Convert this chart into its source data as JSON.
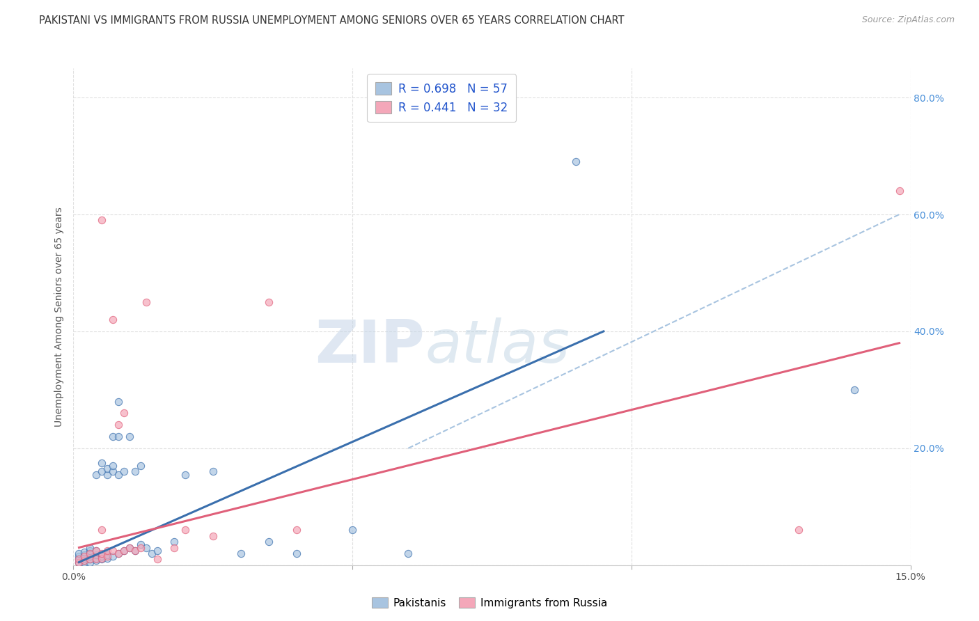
{
  "title": "PAKISTANI VS IMMIGRANTS FROM RUSSIA UNEMPLOYMENT AMONG SENIORS OVER 65 YEARS CORRELATION CHART",
  "source": "Source: ZipAtlas.com",
  "ylabel": "Unemployment Among Seniors over 65 years",
  "xlim": [
    0.0,
    0.15
  ],
  "ylim": [
    0.0,
    0.85
  ],
  "xtick_positions": [
    0.0,
    0.05,
    0.1,
    0.15
  ],
  "xticklabels": [
    "0.0%",
    "",
    "",
    "15.0%"
  ],
  "ytick_positions": [
    0.0,
    0.2,
    0.4,
    0.6,
    0.8
  ],
  "yticklabels_right": [
    "",
    "20.0%",
    "40.0%",
    "60.0%",
    "80.0%"
  ],
  "pakistani_color": "#a8c4e0",
  "russia_color": "#f4a7b9",
  "pakistani_line_color": "#3a6fad",
  "russia_line_color": "#e0607a",
  "dashed_line_color": "#a8c4e0",
  "R_pakistani": 0.698,
  "N_pakistani": 57,
  "R_russia": 0.441,
  "N_russia": 32,
  "watermark_zip": "ZIP",
  "watermark_atlas": "atlas",
  "background_color": "#ffffff",
  "grid_color": "#dddddd",
  "pakistani_scatter": [
    [
      0.001,
      0.005
    ],
    [
      0.001,
      0.01
    ],
    [
      0.001,
      0.015
    ],
    [
      0.001,
      0.02
    ],
    [
      0.002,
      0.005
    ],
    [
      0.002,
      0.008
    ],
    [
      0.002,
      0.012
    ],
    [
      0.002,
      0.018
    ],
    [
      0.002,
      0.022
    ],
    [
      0.003,
      0.005
    ],
    [
      0.003,
      0.01
    ],
    [
      0.003,
      0.015
    ],
    [
      0.003,
      0.02
    ],
    [
      0.003,
      0.025
    ],
    [
      0.003,
      0.03
    ],
    [
      0.004,
      0.008
    ],
    [
      0.004,
      0.012
    ],
    [
      0.004,
      0.018
    ],
    [
      0.004,
      0.025
    ],
    [
      0.004,
      0.155
    ],
    [
      0.005,
      0.01
    ],
    [
      0.005,
      0.015
    ],
    [
      0.005,
      0.16
    ],
    [
      0.005,
      0.175
    ],
    [
      0.006,
      0.012
    ],
    [
      0.006,
      0.018
    ],
    [
      0.006,
      0.155
    ],
    [
      0.006,
      0.165
    ],
    [
      0.007,
      0.015
    ],
    [
      0.007,
      0.16
    ],
    [
      0.007,
      0.17
    ],
    [
      0.007,
      0.22
    ],
    [
      0.008,
      0.02
    ],
    [
      0.008,
      0.155
    ],
    [
      0.008,
      0.22
    ],
    [
      0.008,
      0.28
    ],
    [
      0.009,
      0.025
    ],
    [
      0.009,
      0.16
    ],
    [
      0.01,
      0.03
    ],
    [
      0.01,
      0.22
    ],
    [
      0.011,
      0.025
    ],
    [
      0.011,
      0.16
    ],
    [
      0.012,
      0.035
    ],
    [
      0.012,
      0.17
    ],
    [
      0.013,
      0.03
    ],
    [
      0.014,
      0.02
    ],
    [
      0.015,
      0.025
    ],
    [
      0.018,
      0.04
    ],
    [
      0.02,
      0.155
    ],
    [
      0.025,
      0.16
    ],
    [
      0.03,
      0.02
    ],
    [
      0.035,
      0.04
    ],
    [
      0.04,
      0.02
    ],
    [
      0.05,
      0.06
    ],
    [
      0.06,
      0.02
    ],
    [
      0.09,
      0.69
    ],
    [
      0.14,
      0.3
    ]
  ],
  "russia_scatter": [
    [
      0.001,
      0.005
    ],
    [
      0.001,
      0.01
    ],
    [
      0.002,
      0.008
    ],
    [
      0.002,
      0.015
    ],
    [
      0.003,
      0.01
    ],
    [
      0.003,
      0.02
    ],
    [
      0.004,
      0.01
    ],
    [
      0.004,
      0.025
    ],
    [
      0.005,
      0.012
    ],
    [
      0.005,
      0.02
    ],
    [
      0.005,
      0.06
    ],
    [
      0.005,
      0.59
    ],
    [
      0.006,
      0.015
    ],
    [
      0.006,
      0.025
    ],
    [
      0.007,
      0.025
    ],
    [
      0.007,
      0.42
    ],
    [
      0.008,
      0.02
    ],
    [
      0.008,
      0.24
    ],
    [
      0.009,
      0.025
    ],
    [
      0.009,
      0.26
    ],
    [
      0.01,
      0.03
    ],
    [
      0.011,
      0.025
    ],
    [
      0.012,
      0.03
    ],
    [
      0.013,
      0.45
    ],
    [
      0.015,
      0.01
    ],
    [
      0.018,
      0.03
    ],
    [
      0.02,
      0.06
    ],
    [
      0.025,
      0.05
    ],
    [
      0.035,
      0.45
    ],
    [
      0.04,
      0.06
    ],
    [
      0.13,
      0.06
    ],
    [
      0.148,
      0.64
    ]
  ],
  "pakistani_trend_x": [
    0.001,
    0.095
  ],
  "pakistani_trend_y": [
    0.005,
    0.4
  ],
  "russia_trend_x": [
    0.001,
    0.148
  ],
  "russia_trend_y": [
    0.03,
    0.38
  ],
  "dashed_trend_x": [
    0.06,
    0.148
  ],
  "dashed_trend_y": [
    0.2,
    0.6
  ]
}
